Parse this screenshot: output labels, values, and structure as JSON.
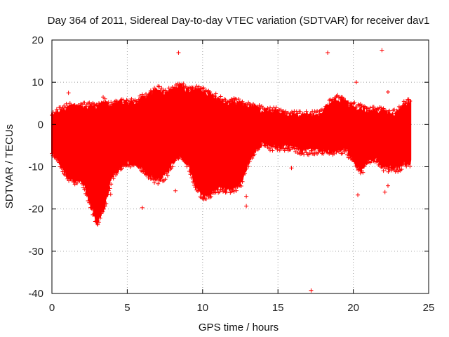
{
  "chart_data": {
    "type": "scatter",
    "title": "Day 364 of 2011, Sidereal Day-to-day VTEC variation (SDTVAR) for receiver dav1",
    "xlabel": "GPS time / hours",
    "ylabel": "SDTVAR / TECUs",
    "xlim": [
      0,
      25
    ],
    "ylim": [
      -40,
      20
    ],
    "xticks": [
      0,
      5,
      10,
      15,
      20,
      25
    ],
    "yticks": [
      -40,
      -30,
      -20,
      -10,
      0,
      10,
      20
    ],
    "grid": true,
    "marker": "+",
    "color": "#ff0000",
    "series": [
      {
        "name": "SDTVAR",
        "envelope": {
          "x": [
            0.0,
            0.5,
            1.0,
            1.5,
            2.0,
            2.5,
            3.0,
            3.5,
            4.0,
            4.5,
            5.0,
            5.5,
            6.0,
            6.5,
            7.0,
            7.5,
            8.0,
            8.5,
            9.0,
            9.5,
            10.0,
            10.5,
            11.0,
            11.5,
            12.0,
            12.5,
            13.0,
            13.5,
            14.0,
            14.5,
            15.0,
            15.5,
            16.0,
            16.5,
            17.0,
            17.5,
            18.0,
            18.5,
            19.0,
            19.5,
            20.0,
            20.5,
            21.0,
            21.5,
            22.0,
            22.5,
            23.0,
            23.5,
            23.8
          ],
          "upper": [
            2,
            3,
            4,
            4,
            4,
            4,
            4,
            5,
            4,
            5,
            5,
            5,
            6,
            7,
            8,
            7,
            8,
            9,
            8,
            8,
            8,
            7,
            6,
            5,
            5,
            5,
            4,
            4,
            3,
            3,
            3,
            2,
            2,
            2,
            2,
            2,
            3,
            5,
            6,
            5,
            4,
            4,
            3,
            3,
            3,
            2,
            3,
            5,
            5
          ],
          "lower": [
            -6,
            -9,
            -12,
            -13,
            -13,
            -18,
            -23,
            -19,
            -12,
            -10,
            -9,
            -9,
            -10,
            -12,
            -13,
            -12,
            -9,
            -7,
            -9,
            -14,
            -17,
            -16,
            -15,
            -15,
            -15,
            -14,
            -9,
            -6,
            -4,
            -5,
            -5,
            -5,
            -5,
            -6,
            -6,
            -6,
            -6,
            -6,
            -6,
            -6,
            -8,
            -11,
            -8,
            -8,
            -10,
            -10,
            -10,
            -9,
            -9
          ]
        },
        "outliers": [
          {
            "x": 1.1,
            "y": 7.5
          },
          {
            "x": 3.4,
            "y": 6.5
          },
          {
            "x": 3.9,
            "y": -16.5
          },
          {
            "x": 6.0,
            "y": -19.7
          },
          {
            "x": 8.2,
            "y": -15.7
          },
          {
            "x": 8.4,
            "y": 17.0
          },
          {
            "x": 12.9,
            "y": -17.0
          },
          {
            "x": 12.9,
            "y": -19.3
          },
          {
            "x": 15.9,
            "y": -10.3
          },
          {
            "x": 17.2,
            "y": -39.3
          },
          {
            "x": 18.3,
            "y": 17.0
          },
          {
            "x": 20.2,
            "y": 10.0
          },
          {
            "x": 20.3,
            "y": -16.7
          },
          {
            "x": 21.9,
            "y": 17.6
          },
          {
            "x": 22.3,
            "y": 7.7
          },
          {
            "x": 22.1,
            "y": -16.0
          },
          {
            "x": 22.3,
            "y": -14.5
          }
        ]
      }
    ]
  }
}
